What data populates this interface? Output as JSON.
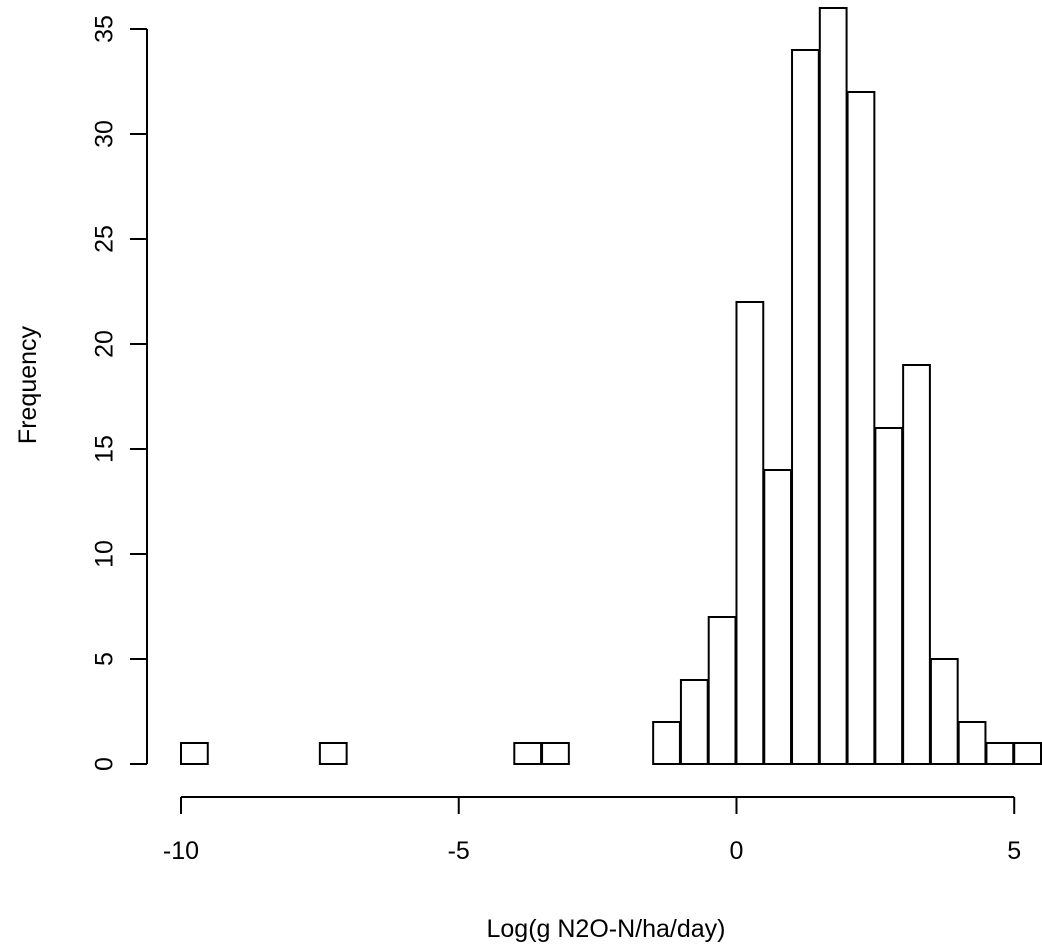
{
  "chart_data": {
    "type": "bar",
    "title": "",
    "xlabel": "Log(g N2O-N/ha/day)",
    "ylabel": "Frequency",
    "bin_width": 0.5,
    "bin_edges_start": -10.0,
    "bins": [
      {
        "x0": -10.0,
        "x1": -9.5,
        "count": 1
      },
      {
        "x0": -9.5,
        "x1": -9.0,
        "count": 0
      },
      {
        "x0": -9.0,
        "x1": -8.5,
        "count": 0
      },
      {
        "x0": -8.5,
        "x1": -8.0,
        "count": 0
      },
      {
        "x0": -8.0,
        "x1": -7.5,
        "count": 0
      },
      {
        "x0": -7.5,
        "x1": -7.0,
        "count": 1
      },
      {
        "x0": -7.0,
        "x1": -6.5,
        "count": 0
      },
      {
        "x0": -6.5,
        "x1": -6.0,
        "count": 0
      },
      {
        "x0": -6.0,
        "x1": -5.5,
        "count": 0
      },
      {
        "x0": -5.5,
        "x1": -5.0,
        "count": 0
      },
      {
        "x0": -5.0,
        "x1": -4.5,
        "count": 0
      },
      {
        "x0": -4.5,
        "x1": -4.0,
        "count": 0
      },
      {
        "x0": -4.0,
        "x1": -3.5,
        "count": 1
      },
      {
        "x0": -3.5,
        "x1": -3.0,
        "count": 1
      },
      {
        "x0": -3.0,
        "x1": -2.5,
        "count": 0
      },
      {
        "x0": -2.5,
        "x1": -2.0,
        "count": 0
      },
      {
        "x0": -2.0,
        "x1": -1.5,
        "count": 0
      },
      {
        "x0": -1.5,
        "x1": -1.0,
        "count": 2
      },
      {
        "x0": -1.0,
        "x1": -0.5,
        "count": 4
      },
      {
        "x0": -0.5,
        "x1": 0.0,
        "count": 7
      },
      {
        "x0": 0.0,
        "x1": 0.5,
        "count": 22
      },
      {
        "x0": 0.5,
        "x1": 1.0,
        "count": 14
      },
      {
        "x0": 1.0,
        "x1": 1.5,
        "count": 34
      },
      {
        "x0": 1.5,
        "x1": 2.0,
        "count": 36
      },
      {
        "x0": 2.0,
        "x1": 2.5,
        "count": 32
      },
      {
        "x0": 2.5,
        "x1": 3.0,
        "count": 16
      },
      {
        "x0": 3.0,
        "x1": 3.5,
        "count": 19
      },
      {
        "x0": 3.5,
        "x1": 4.0,
        "count": 5
      },
      {
        "x0": 4.0,
        "x1": 4.5,
        "count": 2
      },
      {
        "x0": 4.5,
        "x1": 5.0,
        "count": 1
      },
      {
        "x0": 5.0,
        "x1": 5.5,
        "count": 1
      }
    ],
    "xlim": [
      -10.0,
      5.5
    ],
    "ylim": [
      0,
      36
    ],
    "x_ticks": [
      -10,
      -5,
      0,
      5
    ],
    "x_tick_labels": [
      "-10",
      "-5",
      "0",
      "5"
    ],
    "y_ticks": [
      0,
      5,
      10,
      15,
      20,
      25,
      30,
      35
    ],
    "y_tick_labels": [
      "0",
      "5",
      "10",
      "15",
      "20",
      "25",
      "30",
      "35"
    ],
    "grid": false,
    "legend": "none"
  }
}
